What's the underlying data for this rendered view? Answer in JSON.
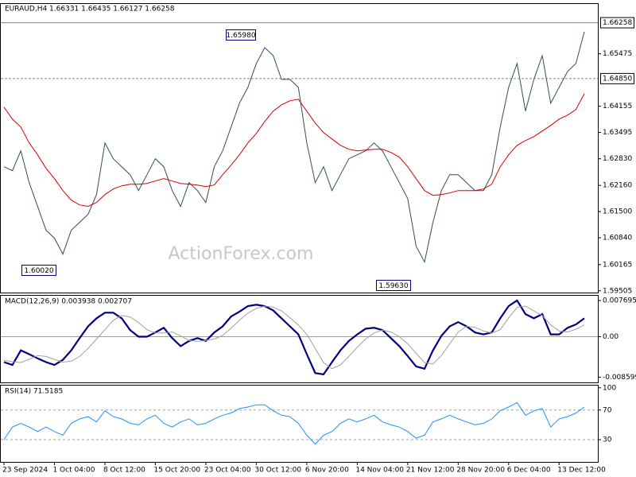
{
  "watermark": "ActionForex.com",
  "chart_data": [
    {
      "type": "line",
      "title": "EURAUD,H4  1.66331 1.66435 1.66127 1.66258",
      "categories": [
        "23 Sep 2024",
        null,
        null,
        null,
        null,
        null,
        "1 Oct 04:00",
        null,
        null,
        null,
        null,
        null,
        "8 Oct 12:00",
        null,
        null,
        null,
        null,
        null,
        "15 Oct 20:00",
        null,
        null,
        null,
        null,
        null,
        "23 Oct 04:00",
        null,
        null,
        null,
        null,
        null,
        "30 Oct 12:00",
        null,
        null,
        null,
        null,
        null,
        "6 Nov 20:00",
        null,
        null,
        null,
        null,
        null,
        "14 Nov 04:00",
        null,
        null,
        null,
        null,
        null,
        "21 Nov 12:00",
        null,
        null,
        null,
        null,
        null,
        "28 Nov 20:00",
        null,
        null,
        null,
        null,
        null,
        "6 Dec 04:00",
        null,
        null,
        null,
        null,
        null,
        "13 Dec 12:00",
        null,
        null,
        null
      ],
      "series": [
        {
          "color": "#2f4f4f",
          "values": [
            1.6263,
            1.6253,
            1.6303,
            1.6223,
            1.6163,
            1.6103,
            1.6083,
            1.6043,
            1.6103,
            1.6123,
            1.6143,
            1.6193,
            1.6323,
            1.6283,
            1.6263,
            1.6243,
            1.6203,
            1.6243,
            1.6283,
            1.6263,
            1.6203,
            1.6163,
            1.6223,
            1.6203,
            1.6173,
            1.6263,
            1.6303,
            1.6363,
            1.6423,
            1.6463,
            1.6523,
            1.6563,
            1.6543,
            1.6483,
            1.6483,
            1.6463,
            1.6323,
            1.6223,
            1.6263,
            1.6203,
            1.6243,
            1.6283,
            1.6293,
            1.6303,
            1.6323,
            1.6303,
            1.6263,
            1.6223,
            1.6183,
            1.6063,
            1.6023,
            1.6123,
            1.6203,
            1.6243,
            1.6243,
            1.6223,
            1.6203,
            1.6203,
            1.6243,
            1.6363,
            1.6463,
            1.6523,
            1.6403,
            1.6483,
            1.6543,
            1.6423,
            1.6463,
            1.6503,
            1.6523,
            1.6603
          ]
        },
        {
          "color": "#d40000",
          "values": [
            1.6413,
            1.6383,
            1.6363,
            1.6323,
            1.6293,
            1.6259,
            1.6233,
            1.6203,
            1.6179,
            1.6167,
            1.6163,
            1.6173,
            1.6193,
            1.6207,
            1.6215,
            1.6219,
            1.6219,
            1.6221,
            1.6227,
            1.6233,
            1.6227,
            1.6221,
            1.6219,
            1.6217,
            1.6213,
            1.6217,
            1.6243,
            1.6267,
            1.6293,
            1.6323,
            1.6347,
            1.6377,
            1.6403,
            1.6419,
            1.6429,
            1.6433,
            1.6403,
            1.6373,
            1.6349,
            1.6333,
            1.6317,
            1.6307,
            1.6303,
            1.6305,
            1.6307,
            1.6307,
            1.6299,
            1.6287,
            1.6263,
            1.6233,
            1.6203,
            1.6191,
            1.6193,
            1.6197,
            1.6203,
            1.6203,
            1.6203,
            1.6207,
            1.6219,
            1.6263,
            1.6293,
            1.6317,
            1.6329,
            1.6339,
            1.6353,
            1.6367,
            1.6383,
            1.6393,
            1.6407,
            1.6447
          ]
        }
      ],
      "ylim": [
        1.5946,
        1.6673
      ],
      "yticks": [
        {
          "value": 1.65475,
          "label": "1.65475"
        },
        {
          "value": 1.64155,
          "label": "1.64155"
        },
        {
          "value": 1.63495,
          "label": "1.63495"
        },
        {
          "value": 1.6283,
          "label": "1.62830"
        },
        {
          "value": 1.6216,
          "label": "1.62160"
        },
        {
          "value": 1.615,
          "label": "1.61500"
        },
        {
          "value": 1.6084,
          "label": "1.60840"
        },
        {
          "value": 1.60165,
          "label": "1.60165"
        },
        {
          "value": 1.59505,
          "label": "1.59505"
        }
      ],
      "price_lines": [
        {
          "value": 1.66258,
          "label": "1.66258",
          "style": "solid"
        },
        {
          "value": 1.6485,
          "label": "1.64850",
          "style": "dashed"
        }
      ],
      "annotations": [
        "1.65980",
        "1.60020",
        "1.59630"
      ]
    },
    {
      "type": "line",
      "title": "MACD(12,26,9) 0.003938 0.002707",
      "series": [
        {
          "color": "#000080",
          "values": [
            -0.0054,
            -0.006,
            -0.0029,
            -0.0037,
            -0.0046,
            -0.0054,
            -0.006,
            -0.0049,
            -0.0029,
            -0.0003,
            0.0022,
            0.0039,
            0.0051,
            0.0051,
            0.0039,
            0.0014,
            0,
            0,
            0.0009,
            0.0019,
            -0.0003,
            -0.002,
            -0.0009,
            -0.0003,
            -0.0009,
            0.0009,
            0.0022,
            0.0043,
            0.0053,
            0.0065,
            0.0068,
            0.0065,
            0.0056,
            0.0039,
            0.0022,
            0.0005,
            -0.0037,
            -0.0077,
            -0.008,
            -0.0054,
            -0.0029,
            -0.0009,
            0.0005,
            0.0017,
            0.0019,
            0.0014,
            -0.0003,
            -0.002,
            -0.0041,
            -0.0063,
            -0.0068,
            -0.0029,
            0.0002,
            0.0022,
            0.0031,
            0.0022,
            0.0009,
            0.0005,
            0.0009,
            0.0039,
            0.0065,
            0.0077,
            0.0048,
            0.0039,
            0.0048,
            0.0005,
            0.0005,
            0.0019,
            0.0026,
            0.0039
          ]
        },
        {
          "color": "#a0a0a0",
          "values": [
            -0.005,
            -0.0053,
            -0.0055,
            -0.0048,
            -0.004,
            -0.0042,
            -0.0048,
            -0.0054,
            -0.0052,
            -0.0042,
            -0.0025,
            -0.0005,
            0.0015,
            0.0035,
            0.0045,
            0.0042,
            0.003,
            0.0015,
            0.0008,
            0.0008,
            0.001,
            0.0002,
            -0.0008,
            -0.001,
            -0.0008,
            -0.0005,
            0.0003,
            0.0018,
            0.0035,
            0.005,
            0.006,
            0.0065,
            0.0063,
            0.0055,
            0.004,
            0.0025,
            0.0005,
            -0.0025,
            -0.0055,
            -0.0068,
            -0.006,
            -0.0042,
            -0.0022,
            -0.0005,
            0.0008,
            0.0014,
            0.001,
            0,
            -0.0015,
            -0.0035,
            -0.0055,
            -0.0058,
            -0.004,
            -0.0015,
            0.001,
            0.0022,
            0.002,
            0.0012,
            0.0008,
            0.0015,
            0.004,
            0.0062,
            0.0065,
            0.0055,
            0.0045,
            0.0025,
            0.0012,
            0.001,
            0.0016,
            0.0025
          ]
        }
      ],
      "ylim": [
        -0.0097,
        0.0087
      ],
      "yticks": [
        0.007695,
        {
          "value": 0,
          "label": "0.00"
        },
        -0.008599
      ],
      "hlines": [
        0
      ]
    },
    {
      "type": "line",
      "title": "RSI(14) 71.5185",
      "series": [
        {
          "color": "#1e90ff",
          "values": [
            30,
            47,
            52,
            47,
            41,
            47,
            41,
            36,
            52,
            58,
            61,
            54,
            69,
            61,
            58,
            52,
            50,
            58,
            63,
            52,
            47,
            54,
            58,
            50,
            52,
            58,
            63,
            66,
            72,
            74,
            77,
            77,
            69,
            63,
            61,
            52,
            36,
            24,
            36,
            41,
            52,
            58,
            54,
            58,
            63,
            54,
            50,
            47,
            41,
            32,
            36,
            54,
            58,
            63,
            58,
            54,
            50,
            52,
            58,
            69,
            74,
            80,
            63,
            69,
            72,
            47,
            58,
            61,
            66,
            74
          ]
        }
      ],
      "ylim": [
        0,
        103
      ],
      "yticks": [
        100,
        70,
        30
      ],
      "hlines": [
        70,
        30
      ]
    }
  ]
}
